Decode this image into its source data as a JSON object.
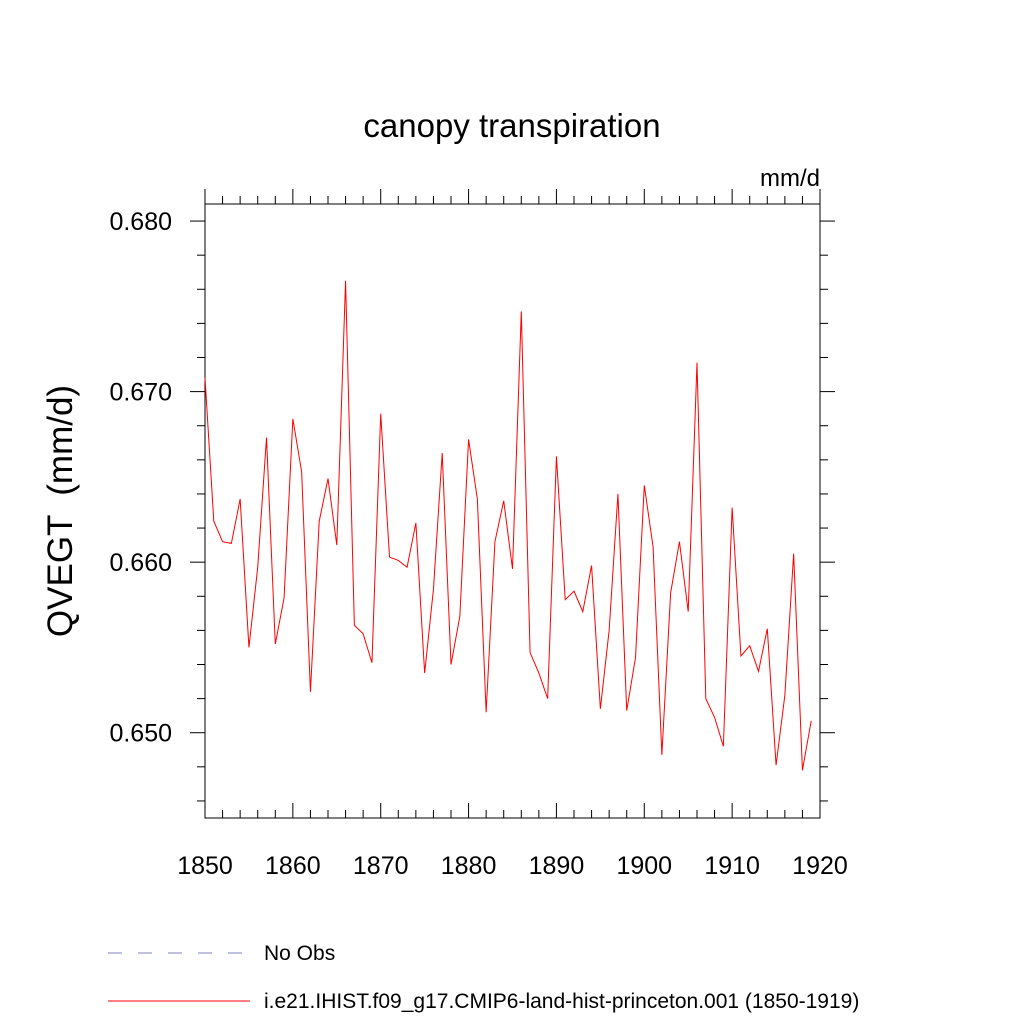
{
  "chart_data": {
    "type": "line",
    "title": "canopy transpiration",
    "units_label": "mm/d",
    "ylabel": "QVEGT  (mm/d)",
    "xlabel": "",
    "xlim": [
      1850,
      1920
    ],
    "ylim": [
      0.645,
      0.681
    ],
    "xticks": [
      1850,
      1860,
      1870,
      1880,
      1890,
      1900,
      1910,
      1920
    ],
    "xtick_labels": [
      "1850",
      "1860",
      "1870",
      "1880",
      "1890",
      "1900",
      "1910",
      "1920"
    ],
    "yticks": [
      0.65,
      0.66,
      0.67,
      0.68
    ],
    "ytick_labels": [
      "0.650",
      "0.660",
      "0.670",
      "0.680"
    ],
    "x_minor_step": 2,
    "y_minor_step": 0.002,
    "grid": false,
    "legend_position": "bottom-left",
    "legend": [
      {
        "name": "No Obs",
        "color": "#8080c0",
        "style": "dashed"
      },
      {
        "name": "i.e21.IHIST.f09_g17.CMIP6-land-hist-princeton.001 (1850-1919)",
        "color": "#ff0000",
        "style": "solid"
      }
    ],
    "series": [
      {
        "name": "i.e21.IHIST.f09_g17.CMIP6-land-hist-princeton.001 (1850-1919)",
        "color": "#ff0000",
        "x": [
          1850,
          1851,
          1852,
          1853,
          1854,
          1855,
          1856,
          1857,
          1858,
          1859,
          1860,
          1861,
          1862,
          1863,
          1864,
          1865,
          1866,
          1867,
          1868,
          1869,
          1870,
          1871,
          1872,
          1873,
          1874,
          1875,
          1876,
          1877,
          1878,
          1879,
          1880,
          1881,
          1882,
          1883,
          1884,
          1885,
          1886,
          1887,
          1888,
          1889,
          1890,
          1891,
          1892,
          1893,
          1894,
          1895,
          1896,
          1897,
          1898,
          1899,
          1900,
          1901,
          1902,
          1903,
          1904,
          1905,
          1906,
          1907,
          1908,
          1909,
          1910,
          1911,
          1912,
          1913,
          1914,
          1915,
          1916,
          1917,
          1918,
          1919
        ],
        "values": [
          0.6708,
          0.6624,
          0.6612,
          0.6611,
          0.6637,
          0.655,
          0.6597,
          0.6673,
          0.6552,
          0.6579,
          0.6684,
          0.6653,
          0.6524,
          0.6624,
          0.6649,
          0.661,
          0.6765,
          0.6563,
          0.6558,
          0.6541,
          0.6687,
          0.6603,
          0.6601,
          0.6597,
          0.6623,
          0.6535,
          0.6584,
          0.6664,
          0.654,
          0.6568,
          0.6672,
          0.6637,
          0.6512,
          0.6612,
          0.6636,
          0.6596,
          0.6747,
          0.6547,
          0.6535,
          0.652,
          0.6662,
          0.6578,
          0.6583,
          0.6571,
          0.6598,
          0.6514,
          0.656,
          0.664,
          0.6513,
          0.6544,
          0.6645,
          0.6609,
          0.6487,
          0.6582,
          0.6612,
          0.6571,
          0.6717,
          0.652,
          0.6509,
          0.6492,
          0.6632,
          0.6545,
          0.6551,
          0.6536,
          0.6561,
          0.6481,
          0.6522,
          0.6605,
          0.6478,
          0.6507
        ]
      }
    ]
  }
}
